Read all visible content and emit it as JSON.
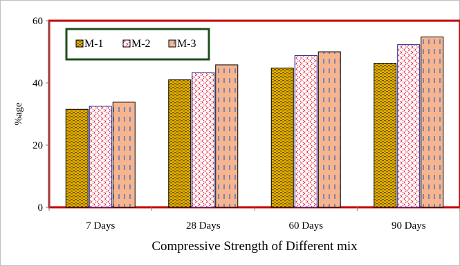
{
  "chart_data": {
    "type": "bar",
    "title": "",
    "xlabel": "Compressive Strength of Different mix",
    "ylabel": "%age",
    "ylim": [
      0,
      60
    ],
    "yticks": [
      0,
      20,
      40,
      60
    ],
    "grid": false,
    "legend_position": "top-left",
    "categories": [
      "7 Days",
      "28 Days",
      "60 Days",
      "90 Days"
    ],
    "series": [
      {
        "name": "M-1",
        "values": [
          31.5,
          41.0,
          44.8,
          46.3
        ]
      },
      {
        "name": "M-2",
        "values": [
          32.5,
          43.3,
          48.8,
          52.3
        ]
      },
      {
        "name": "M-3",
        "values": [
          33.8,
          45.8,
          50.0,
          54.8
        ]
      }
    ],
    "colors": {
      "plot_border": "#c00000",
      "legend_border": "#1e4d1e",
      "m1_fill": "#e6b000",
      "m1_pattern": "#6b5200",
      "m2_fill": "#ffffff",
      "m2_pattern": "#e0203a",
      "m3_fill": "#f6b58f",
      "m3_pattern": "#2b63c8",
      "bar_outline": "#000000"
    }
  }
}
